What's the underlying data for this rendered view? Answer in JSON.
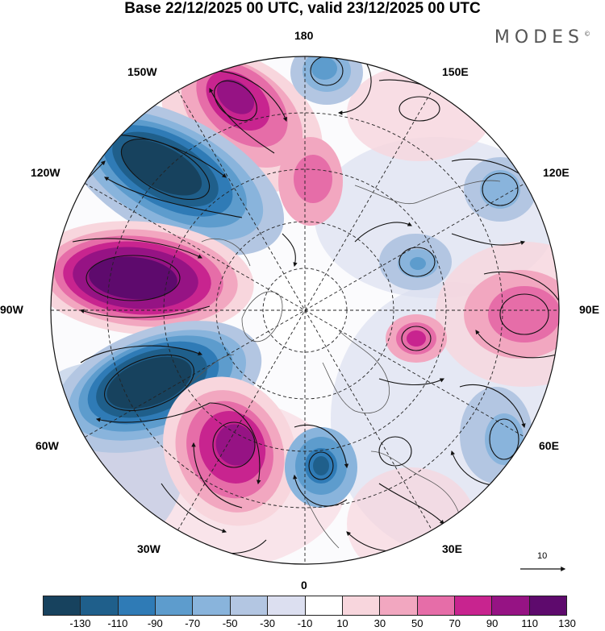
{
  "header": {
    "title": "Base 22/12/2025 00 UTC, valid 23/12/2025 00 UTC",
    "logo_text": "MODES",
    "logo_mark": "©"
  },
  "map": {
    "projection": "north polar stereographic",
    "longitude_labels": {
      "top": "180",
      "top_left": "150W",
      "top_right": "150E",
      "upper_left": "120W",
      "upper_right": "120E",
      "left": "90W",
      "right": "90E",
      "lower_left": "60W",
      "lower_right": "60E",
      "bottom_left": "30W",
      "bottom_right": "30E",
      "bottom": "0"
    },
    "vector_reference": {
      "value": "10"
    }
  },
  "colorbar": {
    "tick_labels": [
      "-130",
      "-110",
      "-90",
      "-70",
      "-50",
      "-30",
      "-10",
      "10",
      "30",
      "50",
      "70",
      "90",
      "110",
      "130"
    ],
    "colors": [
      "#17425e",
      "#1f5f8b",
      "#2f7bb6",
      "#5d9ccd",
      "#89b4dc",
      "#b3c6e2",
      "#dcdff0",
      "#ffffff",
      "#f8d6dd",
      "#f2a7c0",
      "#e66da8",
      "#c8248f",
      "#961384",
      "#5e0a6d"
    ]
  }
}
